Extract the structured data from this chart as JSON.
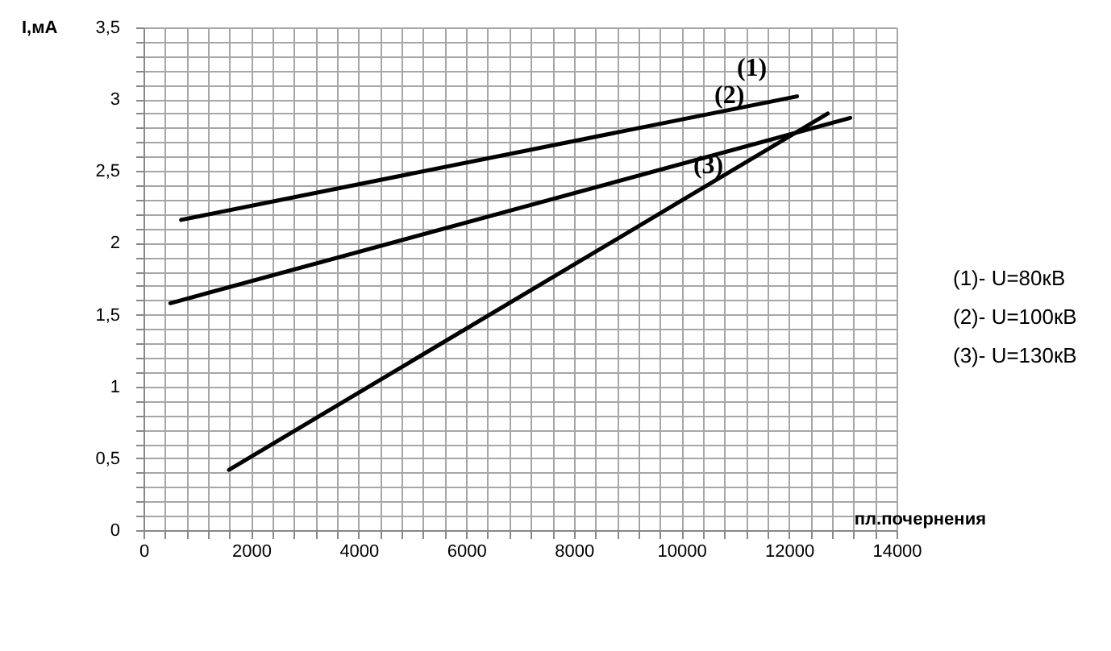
{
  "chart_data": {
    "type": "line",
    "xlabel": "пл.почернения",
    "ylabel": "I,мА",
    "series": [
      {
        "color": "#000000",
        "x": [
          700,
          12150
        ],
        "values": [
          2.16,
          3.02
        ]
      },
      {
        "color": "#000000",
        "x": [
          500,
          13140
        ],
        "values": [
          1.58,
          2.87
        ]
      },
      {
        "color": "#000000",
        "x": [
          1590,
          12720
        ],
        "values": [
          0.42,
          2.9
        ]
      }
    ],
    "annotations": [
      "(1)",
      "(2)",
      "(3)",
      "(1)- U=80кВ",
      "(2)- U=100кВ",
      "(3)- U=130кВ"
    ],
    "xlim": [
      0,
      14000
    ],
    "ylim": [
      0,
      3.5
    ],
    "xticks": [
      0,
      {
        "value": 400,
        "label": null
      },
      {
        "value": 800,
        "label": null
      },
      {
        "value": 1200,
        "label": null
      },
      {
        "value": 1600,
        "label": null
      },
      2000,
      {
        "value": 2400,
        "label": null
      },
      {
        "value": 2800,
        "label": null
      },
      {
        "value": 3200,
        "label": null
      },
      {
        "value": 3600,
        "label": null
      },
      4000,
      {
        "value": 4400,
        "label": null
      },
      {
        "value": 4800,
        "label": null
      },
      {
        "value": 5200,
        "label": null
      },
      {
        "value": 5600,
        "label": null
      },
      6000,
      {
        "value": 6400,
        "label": null
      },
      {
        "value": 6800,
        "label": null
      },
      {
        "value": 7200,
        "label": null
      },
      {
        "value": 7600,
        "label": null
      },
      8000,
      {
        "value": 8400,
        "label": null
      },
      {
        "value": 8800,
        "label": null
      },
      {
        "value": 9200,
        "label": null
      },
      {
        "value": 9600,
        "label": null
      },
      10000,
      {
        "value": 10400,
        "label": null
      },
      {
        "value": 10800,
        "label": null
      },
      {
        "value": 11200,
        "label": null
      },
      {
        "value": 11600,
        "label": null
      },
      12000,
      {
        "value": 12400,
        "label": null
      },
      {
        "value": 12800,
        "label": null
      },
      {
        "value": 13200,
        "label": null
      },
      {
        "value": 13600,
        "label": null
      },
      14000
    ],
    "yticks": [
      0,
      {
        "value": 0.1,
        "label": null
      },
      {
        "value": 0.2,
        "label": null
      },
      {
        "value": 0.3,
        "label": null
      },
      {
        "value": 0.4,
        "label": null
      },
      {
        "value": 0.5,
        "label": "0,5"
      },
      {
        "value": 0.6,
        "label": null
      },
      {
        "value": 0.7,
        "label": null
      },
      {
        "value": 0.8,
        "label": null
      },
      {
        "value": 0.9,
        "label": null
      },
      1,
      {
        "value": 1.1,
        "label": null
      },
      {
        "value": 1.2,
        "label": null
      },
      {
        "value": 1.3,
        "label": null
      },
      {
        "value": 1.4,
        "label": null
      },
      {
        "value": 1.5,
        "label": "1,5"
      },
      {
        "value": 1.6,
        "label": null
      },
      {
        "value": 1.7,
        "label": null
      },
      {
        "value": 1.8,
        "label": null
      },
      {
        "value": 1.9,
        "label": null
      },
      2,
      {
        "value": 2.1,
        "label": null
      },
      {
        "value": 2.2,
        "label": null
      },
      {
        "value": 2.3,
        "label": null
      },
      {
        "value": 2.4,
        "label": null
      },
      {
        "value": 2.5,
        "label": "2,5"
      },
      {
        "value": 2.6,
        "label": null
      },
      {
        "value": 2.7,
        "label": null
      },
      {
        "value": 2.8,
        "label": null
      },
      {
        "value": 2.9,
        "label": null
      },
      3,
      {
        "value": 3.1,
        "label": null
      },
      {
        "value": 3.2,
        "label": null
      },
      {
        "value": 3.3,
        "label": null
      },
      {
        "value": 3.4,
        "label": null
      },
      {
        "value": 3.5,
        "label": "3,5"
      }
    ],
    "grid": true,
    "legend": false
  }
}
